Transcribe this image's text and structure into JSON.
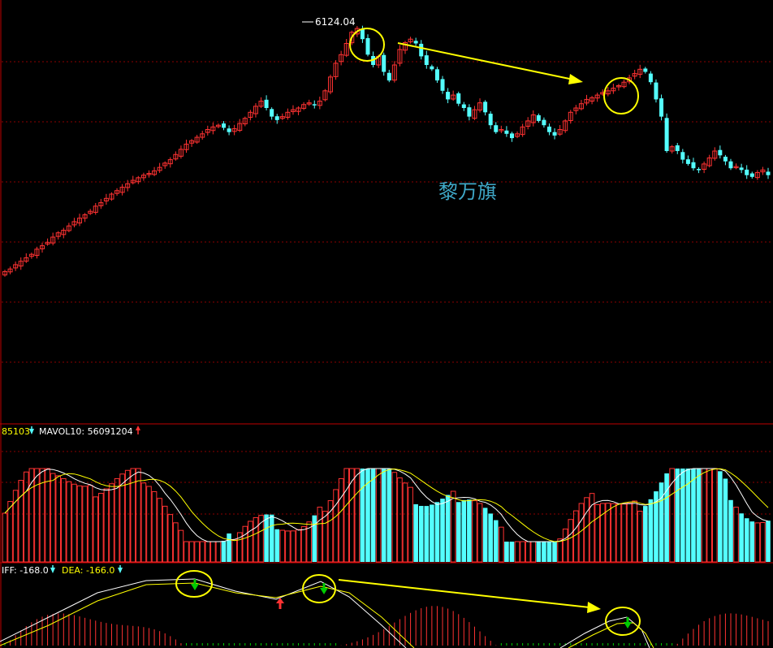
{
  "price_panel": {
    "high_label": "6124.04",
    "watermark": "黎万旗"
  },
  "volume_panel": {
    "indicator_a_value": "85103",
    "indicator_a_arrow": "down",
    "mavol10_label": "MAVOL10: 56091204",
    "mavol10_arrow": "up"
  },
  "macd_panel": {
    "diff_label": "IFF: -168.0",
    "diff_arrow": "down",
    "dea_label": "DEA: -166.0",
    "dea_arrow": "down"
  },
  "colors": {
    "background": "#000000",
    "up_candle": "#ff3232",
    "down_candle": "#54ffff",
    "grid": "#8b0000",
    "annotation": "#ffff00",
    "label_yellow": "#ffff00",
    "label_white": "#ffffff",
    "watermark": "#3fa8c8",
    "signal_green": "#00cc00",
    "signal_red": "#ff3232"
  },
  "chart_data": [
    {
      "type": "candlestick",
      "panel": "price",
      "note": "Approximate OHLC values read from the chart shape; y axis tick labels are not shown in the screenshot.",
      "annotations": [
        "6124.04"
      ],
      "ohlc_close_path": [
        3300,
        3330,
        3380,
        3420,
        3460,
        3500,
        3560,
        3600,
        3640,
        3700,
        3750,
        3780,
        3830,
        3880,
        3920,
        3960,
        4000,
        4060,
        4100,
        4150,
        4200,
        4240,
        4280,
        4320,
        4360,
        4390,
        4420,
        4440,
        4470,
        4510,
        4560,
        4600,
        4660,
        4720,
        4780,
        4820,
        4860,
        4900,
        4950,
        4980,
        5000,
        4970,
        4920,
        4960,
        5020,
        5080,
        5150,
        5220,
        5280,
        5200,
        5100,
        5060,
        5100,
        5150,
        5180,
        5200,
        5240,
        5260,
        5230,
        5280,
        5400,
        5560,
        5720,
        5820,
        5950,
        6080,
        6124,
        6000,
        5820,
        5700,
        5800,
        5620,
        5520,
        5700,
        5880,
        5960,
        6000,
        5950,
        5800,
        5700,
        5650,
        5520,
        5400,
        5300,
        5350,
        5250,
        5200,
        5100,
        5180,
        5260,
        5150,
        5000,
        4920,
        4950,
        4900,
        4850,
        4900,
        4980,
        5050,
        5120,
        5050,
        5000,
        4920,
        4880,
        4950,
        5050,
        5150,
        5200,
        5250,
        5300,
        5320,
        5350,
        5380,
        5400,
        5430,
        5460,
        5500,
        5550,
        5600,
        5650,
        5620,
        5500,
        5300,
        5100,
        4700,
        4750,
        4700,
        4600,
        4550,
        4500,
        4480,
        4550,
        4620,
        4700,
        4650,
        4580,
        4500,
        4520,
        4480,
        4420,
        4400,
        4450,
        4480,
        4420
      ]
    },
    {
      "type": "bar",
      "panel": "volume",
      "series": [
        {
          "name": "MAVOL10",
          "value": 56091204
        }
      ]
    },
    {
      "type": "line",
      "panel": "macd",
      "series": [
        {
          "name": "DIFF",
          "value": -168.0
        },
        {
          "name": "DEA",
          "value": -166.0
        }
      ]
    }
  ]
}
